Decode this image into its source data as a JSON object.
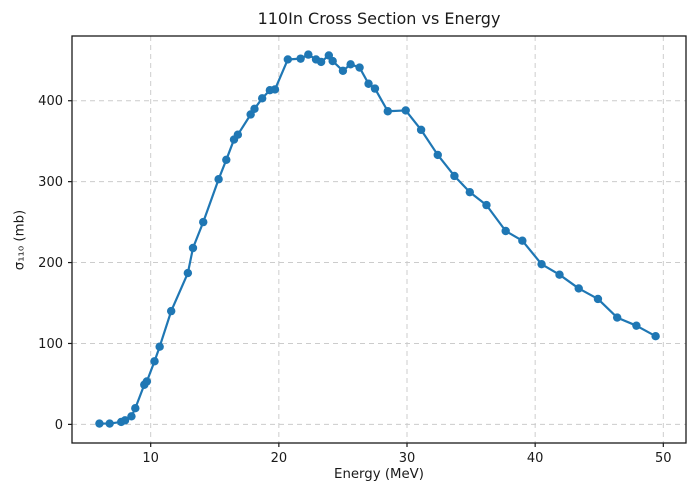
{
  "chart_data": {
    "type": "line",
    "title": "110In Cross Section vs Energy",
    "xlabel": "Energy (MeV)",
    "ylabel": "σ₁₁₀ (mb)",
    "xlim": [
      3.86,
      51.77
    ],
    "ylim": [
      -23,
      480
    ],
    "x_ticks": [
      10,
      20,
      30,
      40,
      50
    ],
    "y_ticks": [
      0,
      100,
      200,
      300,
      400
    ],
    "grid": true,
    "grid_style": "dashed",
    "legend": false,
    "line_color": "#1f77b4",
    "marker": "circle",
    "series": [
      {
        "name": "110In cross section",
        "x": [
          6.0,
          6.8,
          7.7,
          8.0,
          8.5,
          8.8,
          9.5,
          9.7,
          10.3,
          10.7,
          11.6,
          12.9,
          13.3,
          14.1,
          15.3,
          15.9,
          16.5,
          16.8,
          17.8,
          18.1,
          18.7,
          19.3,
          19.7,
          20.7,
          21.7,
          22.3,
          22.9,
          23.3,
          23.9,
          24.2,
          25.0,
          25.6,
          26.3,
          27.0,
          27.5,
          28.5,
          29.9,
          31.1,
          32.4,
          33.7,
          34.9,
          36.2,
          37.7,
          39.0,
          40.5,
          41.9,
          43.4,
          44.9,
          46.4,
          47.9,
          49.4
        ],
        "y": [
          1,
          1,
          3,
          5,
          10,
          20,
          49,
          53,
          78,
          96,
          140,
          187,
          218,
          250,
          303,
          327,
          352,
          358,
          383,
          390,
          403,
          413,
          414,
          451,
          452,
          457,
          451,
          448,
          456,
          449,
          437,
          445,
          441,
          421,
          415,
          387,
          388,
          364,
          333,
          307,
          287,
          271,
          239,
          227,
          198,
          185,
          168,
          155,
          132,
          122,
          109
        ]
      }
    ]
  }
}
